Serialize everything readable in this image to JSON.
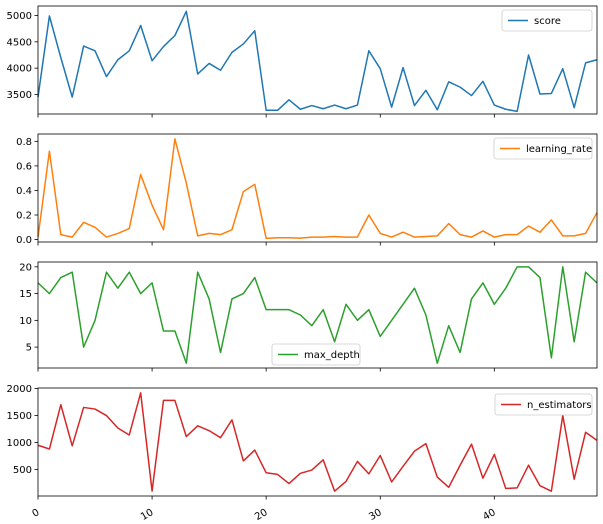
{
  "chart_data": [
    {
      "type": "line",
      "series": [
        {
          "name": "score",
          "color": "#1f77b4",
          "values": [
            3450,
            4990,
            4200,
            3450,
            4420,
            4330,
            3840,
            4160,
            4330,
            4810,
            4140,
            4410,
            4620,
            5080,
            3890,
            4090,
            3960,
            4300,
            4460,
            4710,
            3200,
            3200,
            3400,
            3220,
            3290,
            3230,
            3300,
            3230,
            3300,
            4330,
            3990,
            3260,
            4010,
            3290,
            3580,
            3210,
            3740,
            3640,
            3480,
            3750,
            3300,
            3220,
            3180,
            4250,
            3510,
            3520,
            3990,
            3250,
            4100,
            4160
          ]
        }
      ],
      "x": {
        "start": 0,
        "end": 49
      },
      "xlim": [
        0,
        49
      ],
      "ylim": [
        3130,
        5180
      ],
      "yticks": [
        3500,
        4000,
        4500,
        5000
      ],
      "ytick_labels": [
        "3500",
        "4000",
        "4500",
        "5000"
      ],
      "legend_position": "top-right",
      "grid": false
    },
    {
      "type": "line",
      "series": [
        {
          "name": "learning_rate",
          "color": "#ff7f0e",
          "values": [
            0.02,
            0.72,
            0.04,
            0.02,
            0.14,
            0.1,
            0.02,
            0.05,
            0.09,
            0.53,
            0.28,
            0.08,
            0.82,
            0.46,
            0.03,
            0.05,
            0.04,
            0.08,
            0.39,
            0.45,
            0.01,
            0.015,
            0.015,
            0.012,
            0.02,
            0.02,
            0.025,
            0.02,
            0.02,
            0.2,
            0.05,
            0.02,
            0.06,
            0.02,
            0.025,
            0.03,
            0.13,
            0.04,
            0.02,
            0.07,
            0.02,
            0.04,
            0.04,
            0.11,
            0.06,
            0.16,
            0.03,
            0.03,
            0.05,
            0.22
          ]
        }
      ],
      "x": {
        "start": 0,
        "end": 49
      },
      "xlim": [
        0,
        49
      ],
      "ylim": [
        -0.02,
        0.86
      ],
      "yticks": [
        0.0,
        0.2,
        0.4,
        0.6,
        0.8
      ],
      "ytick_labels": [
        "0.0",
        "0.2",
        "0.4",
        "0.6",
        "0.8"
      ],
      "legend_position": "top-right",
      "grid": false
    },
    {
      "type": "line",
      "series": [
        {
          "name": "max_depth",
          "color": "#2ca02c",
          "values": [
            17,
            15,
            18,
            19,
            5,
            10,
            19,
            16,
            19,
            15,
            17,
            8,
            8,
            2,
            19,
            14,
            4,
            14,
            15,
            18,
            12,
            12,
            12,
            11,
            9,
            12,
            6,
            13,
            10,
            12,
            7,
            10,
            13,
            16,
            11,
            2,
            9,
            4,
            14,
            17,
            13,
            16,
            20,
            20,
            18,
            3,
            20,
            6,
            19,
            17
          ]
        }
      ],
      "x": {
        "start": 0,
        "end": 49
      },
      "xlim": [
        0,
        49
      ],
      "ylim": [
        1.1,
        20.9
      ],
      "yticks": [
        5,
        10,
        15,
        20
      ],
      "ytick_labels": [
        "5",
        "10",
        "15",
        "20"
      ],
      "legend_position": "lower-center",
      "grid": false
    },
    {
      "type": "line",
      "series": [
        {
          "name": "n_estimators",
          "color": "#d62728",
          "values": [
            950,
            880,
            1700,
            940,
            1650,
            1620,
            1500,
            1270,
            1140,
            1920,
            100,
            1780,
            1780,
            1110,
            1310,
            1220,
            1090,
            1420,
            660,
            860,
            440,
            410,
            240,
            430,
            490,
            680,
            100,
            280,
            650,
            420,
            760,
            270,
            560,
            840,
            980,
            360,
            170,
            580,
            970,
            340,
            780,
            150,
            160,
            580,
            200,
            100,
            1500,
            320,
            1190,
            1040
          ]
        }
      ],
      "x": {
        "start": 0,
        "end": 49
      },
      "xlim": [
        0,
        49
      ],
      "ylim": [
        10,
        2010
      ],
      "yticks": [
        500,
        1000,
        1500,
        2000
      ],
      "ytick_labels": [
        "500",
        "1000",
        "1500",
        "2000"
      ],
      "legend_position": "top-right",
      "grid": false,
      "xticks": [
        0,
        10,
        20,
        30,
        40
      ],
      "xtick_labels": [
        "0",
        "10",
        "20",
        "30",
        "40"
      ]
    }
  ]
}
